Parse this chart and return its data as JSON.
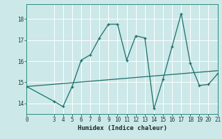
{
  "xlabel": "Humidex (Indice chaleur)",
  "bg_color": "#cce8e8",
  "grid_color": "#ffffff",
  "line_color": "#1a6e6a",
  "xlim": [
    0,
    21
  ],
  "ylim": [
    13.5,
    18.7
  ],
  "xticks": [
    0,
    3,
    4,
    5,
    6,
    7,
    8,
    9,
    10,
    11,
    12,
    13,
    14,
    15,
    16,
    17,
    18,
    19,
    20,
    21
  ],
  "yticks": [
    14,
    15,
    16,
    17,
    18
  ],
  "curve1_x": [
    0,
    3,
    4,
    5,
    6,
    7,
    8,
    9,
    10,
    11,
    12,
    13,
    14,
    15,
    16,
    17,
    18,
    19,
    20,
    21
  ],
  "curve1_y": [
    14.8,
    14.1,
    13.85,
    14.8,
    16.05,
    16.3,
    17.1,
    17.75,
    17.75,
    16.05,
    17.2,
    17.1,
    13.75,
    15.15,
    16.7,
    18.25,
    15.9,
    14.85,
    14.9,
    15.4
  ],
  "curve2_x": [
    0,
    21
  ],
  "curve2_y": [
    14.8,
    15.55
  ],
  "marker1_indices": [
    0,
    3,
    4,
    5,
    6,
    7,
    8,
    9,
    10,
    11,
    12,
    13,
    14,
    15,
    16,
    17,
    18,
    19,
    20,
    21
  ]
}
